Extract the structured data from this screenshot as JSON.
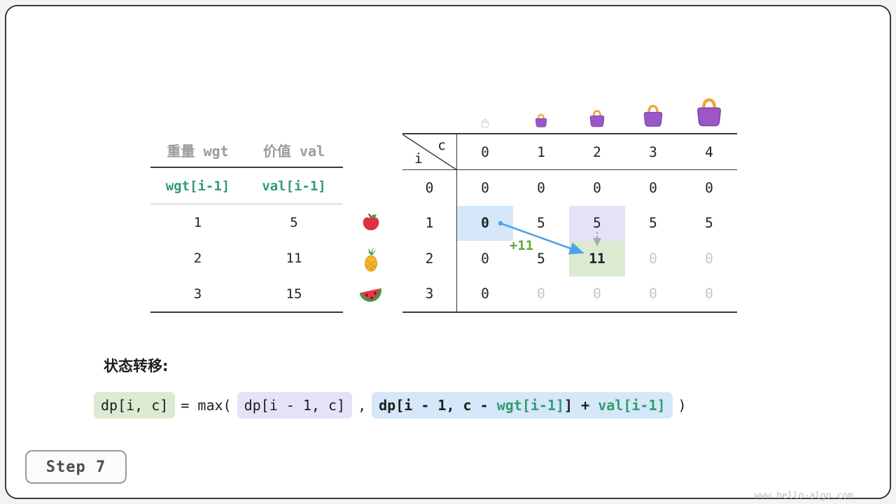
{
  "page": {
    "step_label": "Step 7",
    "watermark": "www.hello-algo.com"
  },
  "items_table": {
    "headers": [
      "重量 wgt",
      "价值 val"
    ],
    "formula_row": [
      "wgt[i-1]",
      "val[i-1]"
    ],
    "rows": [
      {
        "wgt": "1",
        "val": "5",
        "icon": "apple"
      },
      {
        "wgt": "2",
        "val": "11",
        "icon": "pineapple"
      },
      {
        "wgt": "3",
        "val": "15",
        "icon": "watermelon"
      }
    ]
  },
  "dp_table": {
    "corner": {
      "row_var": "i",
      "col_var": "c"
    },
    "col_headers": [
      "0",
      "1",
      "2",
      "3",
      "4"
    ],
    "row_headers": [
      "0",
      "1",
      "2",
      "3"
    ],
    "capacity_icons": [
      "empty-bag",
      "bag",
      "bag",
      "bag",
      "bag"
    ],
    "cells": [
      [
        {
          "t": "0"
        },
        {
          "t": "0"
        },
        {
          "t": "0"
        },
        {
          "t": "0"
        },
        {
          "t": "0"
        }
      ],
      [
        {
          "t": "0",
          "hl": "blue",
          "bold": true
        },
        {
          "t": "5"
        },
        {
          "t": "5",
          "hl": "lavender"
        },
        {
          "t": "5"
        },
        {
          "t": "5"
        }
      ],
      [
        {
          "t": "0"
        },
        {
          "t": "5"
        },
        {
          "t": "11",
          "hl": "green",
          "bold": true
        },
        {
          "t": "0",
          "dim": true
        },
        {
          "t": "0",
          "dim": true
        }
      ],
      [
        {
          "t": "0"
        },
        {
          "t": "0",
          "dim": true
        },
        {
          "t": "0",
          "dim": true
        },
        {
          "t": "0",
          "dim": true
        },
        {
          "t": "0",
          "dim": true
        }
      ]
    ],
    "annotation": {
      "gain_label": "+11"
    }
  },
  "transition": {
    "label": "状态转移:",
    "lhs": "dp[i, c]",
    "eq_max": "= max(",
    "arg1": "dp[i - 1, c]",
    "comma": ",",
    "arg2": {
      "p1": "dp[i - 1, c - ",
      "wgt": "wgt[i-1]",
      "p2": "] + ",
      "val": "val[i-1]"
    },
    "close": ")"
  },
  "colors": {
    "accent_teal": "#2f9e6e",
    "gain_green": "#67a73c",
    "arrow_blue": "#4da3e8",
    "hl_blue": "#d5e7f9",
    "hl_lavender": "#e4e2f6",
    "hl_green": "#dcead2",
    "bag_purple": "#9a57c5",
    "bag_handle": "#f0a43a"
  }
}
